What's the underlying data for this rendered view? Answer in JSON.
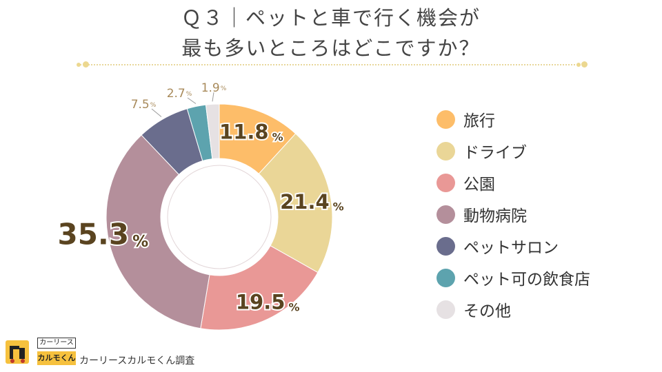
{
  "title_lines": [
    "Ｑ３｜ペットと車で行く機会が",
    "最も多いところはどこですか？"
  ],
  "logo": {
    "top_text": "カーリース",
    "bottom_text": "カルモくん"
  },
  "source": "カーリースカルモくん調査",
  "chart_data": {
    "type": "pie",
    "title": "Ｑ３｜ペットと車で行く機会が最も多いところはどこですか？",
    "unit": "%",
    "donut": true,
    "legend_position": "right",
    "categories": [
      "旅行",
      "ドライブ",
      "公園",
      "動物病院",
      "ペットサロン",
      "ペット可の飲食店",
      "その他"
    ],
    "values": [
      11.8,
      21.4,
      19.5,
      35.3,
      7.5,
      2.7,
      1.9
    ],
    "value_labels": [
      "11.8",
      "21.4",
      "19.5",
      "35.3",
      "7.5",
      "2.7",
      "1.9"
    ],
    "colors": [
      "#fdbd69",
      "#ead697",
      "#e99896",
      "#b48f9b",
      "#6a6d8d",
      "#5da3ae",
      "#e6e1e3"
    ]
  }
}
